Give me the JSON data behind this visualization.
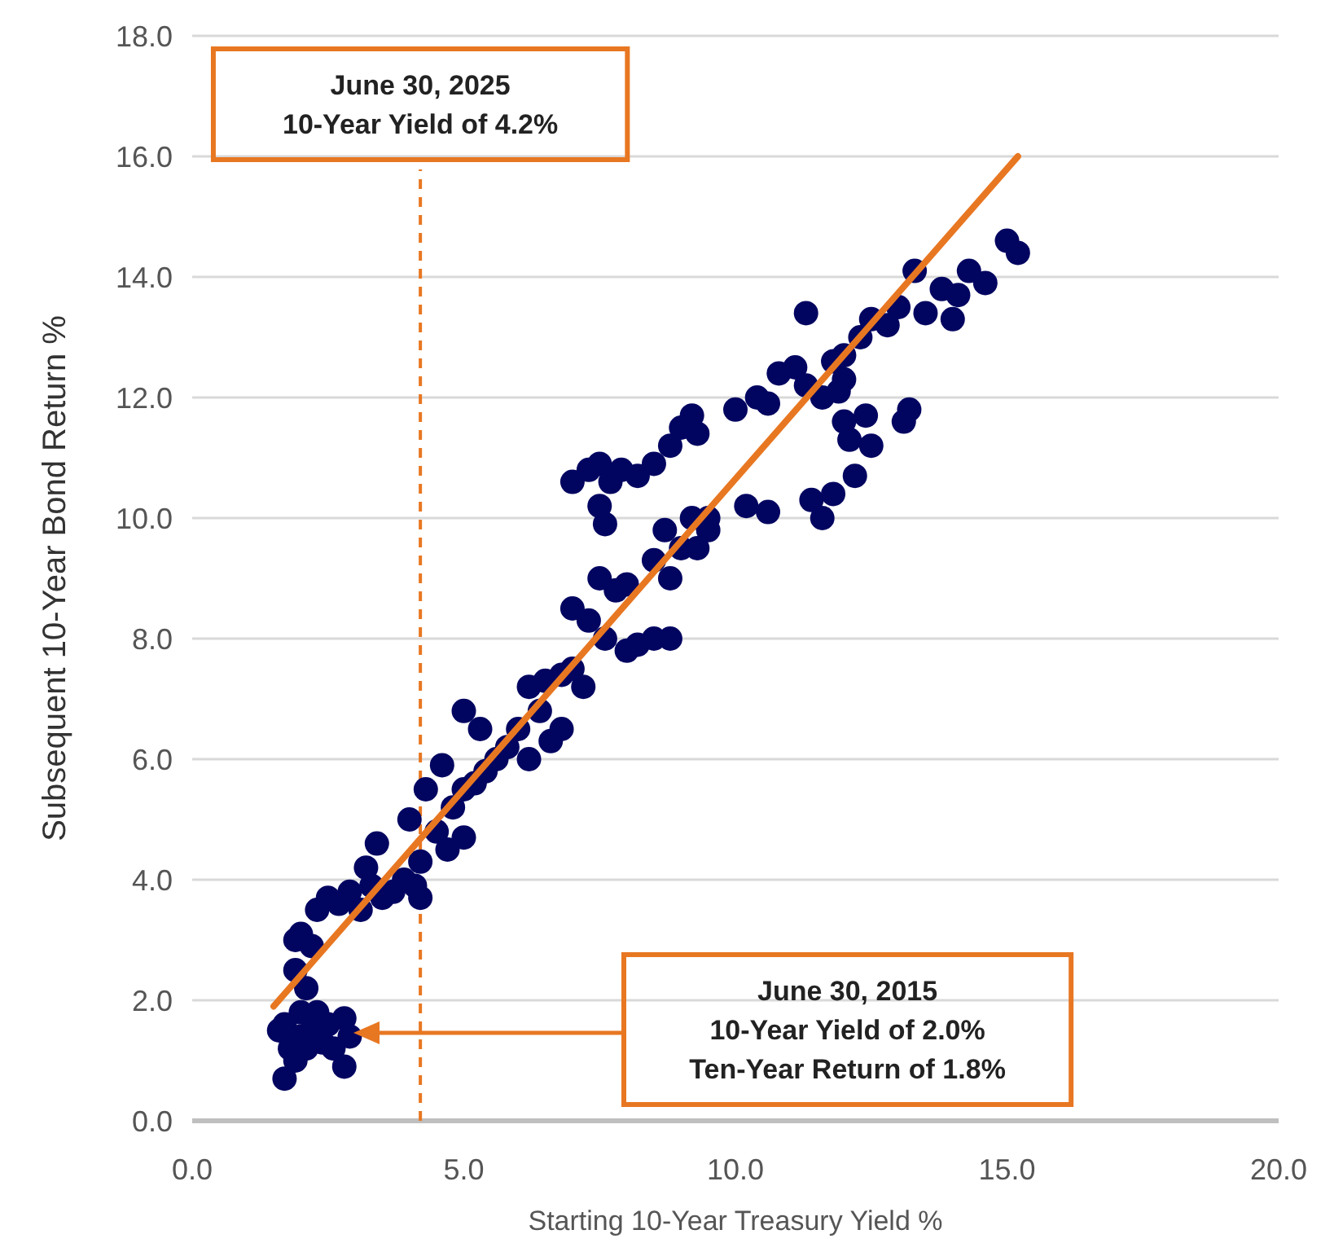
{
  "chart_data": {
    "type": "scatter",
    "xlabel": "Starting 10-Year Treasury Yield %",
    "ylabel": "Subsequent 10-Year Bond Return %",
    "xlim": [
      0,
      20
    ],
    "xticks": [
      {
        "value": 0,
        "label": "0.0"
      },
      {
        "value": 5,
        "label": "5.0"
      },
      {
        "value": 10,
        "label": "10.0"
      },
      {
        "value": 15,
        "label": "15.0"
      },
      {
        "value": 20,
        "label": "20.0"
      }
    ],
    "ylim": [
      0,
      18
    ],
    "yticks": [
      {
        "value": 0,
        "label": "0.0"
      },
      {
        "value": 2,
        "label": "2.0"
      },
      {
        "value": 4,
        "label": "4.0"
      },
      {
        "value": 6,
        "label": "6.0"
      },
      {
        "value": 8,
        "label": "8.0"
      },
      {
        "value": 10,
        "label": "10.0"
      },
      {
        "value": 12,
        "label": "12.0"
      },
      {
        "value": 14,
        "label": "14.0"
      },
      {
        "value": 16,
        "label": "16.0"
      },
      {
        "value": 18,
        "label": "18.0"
      }
    ],
    "grid": "y",
    "marker": "circle",
    "series": [
      {
        "color": "#020560",
        "x": [
          1.6,
          1.7,
          1.7,
          1.8,
          1.9,
          2.0,
          2.1,
          2.2,
          2.3,
          2.4,
          2.5,
          2.6,
          2.8,
          2.8,
          2.9,
          2.0,
          1.9,
          1.9,
          2.0,
          2.1,
          2.2,
          2.3,
          2.5,
          2.7,
          2.9,
          3.1,
          3.3,
          3.5,
          3.7,
          3.9,
          4.1,
          4.2,
          4.2,
          3.4,
          3.2,
          4.0,
          4.3,
          4.5,
          4.7,
          4.8,
          5.0,
          5.0,
          4.6,
          5.2,
          5.4,
          5.6,
          5.0,
          5.3,
          5.8,
          6.0,
          6.2,
          6.4,
          6.6,
          6.8,
          7.0,
          6.2,
          6.5,
          6.8,
          7.2,
          7.0,
          7.3,
          7.6,
          7.8,
          8.0,
          8.2,
          8.5,
          8.8,
          7.5,
          8.0,
          8.5,
          8.8,
          9.0,
          8.7,
          9.3,
          9.5,
          9.2,
          7.0,
          7.3,
          7.5,
          7.7,
          7.9,
          7.5,
          7.6,
          8.2,
          8.5,
          8.8,
          9.0,
          9.2,
          9.3,
          10.0,
          10.4,
          10.8,
          11.1,
          10.6,
          11.6,
          11.3,
          11.8,
          12.0,
          12.1,
          12.4,
          13.1,
          13.2,
          9.5,
          10.2,
          10.6,
          11.4,
          11.6,
          11.8,
          12.2,
          12.5,
          11.3,
          12.0,
          12.3,
          12.5,
          12.8,
          13.0,
          13.3,
          13.5,
          13.8,
          14.1,
          14.0,
          14.3,
          14.6,
          15.0,
          15.2,
          12.0,
          11.9
        ],
        "values": [
          1.5,
          1.6,
          0.7,
          1.2,
          1.0,
          1.4,
          1.2,
          1.5,
          1.8,
          1.3,
          1.6,
          1.2,
          0.9,
          1.7,
          1.4,
          1.8,
          2.5,
          3.0,
          3.1,
          2.2,
          2.9,
          3.5,
          3.7,
          3.6,
          3.8,
          3.5,
          3.9,
          3.7,
          3.8,
          4.0,
          3.9,
          4.3,
          3.7,
          4.6,
          4.2,
          5.0,
          5.5,
          4.8,
          4.5,
          5.2,
          4.7,
          5.5,
          5.9,
          5.6,
          5.8,
          6.0,
          6.8,
          6.5,
          6.2,
          6.5,
          6.0,
          6.8,
          6.3,
          6.5,
          7.5,
          7.2,
          7.3,
          7.4,
          7.2,
          8.5,
          8.3,
          8.0,
          8.8,
          7.8,
          7.9,
          8.0,
          8.0,
          9.0,
          8.9,
          9.3,
          9.0,
          9.5,
          9.8,
          9.5,
          9.8,
          10.0,
          10.6,
          10.8,
          10.9,
          10.6,
          10.8,
          10.2,
          9.9,
          10.7,
          10.9,
          11.2,
          11.5,
          11.7,
          11.4,
          11.8,
          12.0,
          12.4,
          12.5,
          11.9,
          12.0,
          12.2,
          12.6,
          11.6,
          11.3,
          11.7,
          11.6,
          11.8,
          10.0,
          10.2,
          10.1,
          10.3,
          10.0,
          10.4,
          10.7,
          11.2,
          13.4,
          12.7,
          13.0,
          13.3,
          13.2,
          13.5,
          14.1,
          13.4,
          13.8,
          13.7,
          13.3,
          14.1,
          13.9,
          14.6,
          14.4,
          12.3,
          12.1
        ]
      },
      {
        "type": "line",
        "marker": "none",
        "color": "#e87722",
        "x": [
          1.5,
          15.2
        ],
        "values": [
          1.9,
          16.0
        ]
      }
    ],
    "ref_lines": [
      {
        "axis": "x",
        "value": 4.2,
        "label": "June 30, 2025\n10-Year Yield of 4.2%",
        "color": "#e87722",
        "line_style": "dashed"
      }
    ],
    "annotations": [
      "June 30, 2015\n10-Year Yield of 2.0%\nTen-Year Return of 1.8%"
    ]
  }
}
